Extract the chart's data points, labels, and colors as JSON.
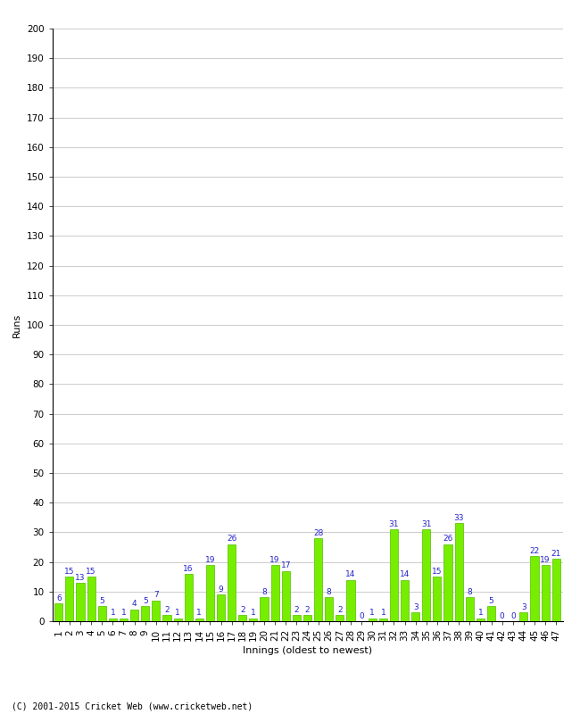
{
  "xlabel": "Innings (oldest to newest)",
  "ylabel": "Runs",
  "ylim": [
    0,
    200
  ],
  "yticks": [
    0,
    10,
    20,
    30,
    40,
    50,
    60,
    70,
    80,
    90,
    100,
    110,
    120,
    130,
    140,
    150,
    160,
    170,
    180,
    190,
    200
  ],
  "innings": [
    1,
    2,
    3,
    4,
    5,
    6,
    7,
    8,
    9,
    10,
    11,
    12,
    13,
    14,
    15,
    16,
    17,
    18,
    19,
    20,
    21,
    22,
    23,
    24,
    25,
    26,
    27,
    28,
    29,
    30,
    31,
    32,
    33,
    34,
    35,
    36,
    37,
    38,
    39,
    40,
    41,
    42,
    43,
    44,
    45,
    46,
    47
  ],
  "values": [
    6,
    15,
    13,
    15,
    5,
    1,
    1,
    4,
    5,
    7,
    2,
    1,
    16,
    1,
    19,
    9,
    26,
    2,
    1,
    8,
    19,
    17,
    2,
    2,
    28,
    8,
    2,
    14,
    0,
    1,
    1,
    31,
    14,
    3,
    31,
    15,
    26,
    33,
    8,
    1,
    5,
    0,
    0,
    3,
    22,
    19,
    21
  ],
  "bar_color": "#77ee00",
  "bar_edge_color": "#55bb00",
  "label_color": "#2222cc",
  "background_color": "#ffffff",
  "grid_color": "#cccccc",
  "footer": "(C) 2001-2015 Cricket Web (www.cricketweb.net)",
  "label_fontsize": 6.5,
  "tick_fontsize": 7.5,
  "xlabel_fontsize": 8,
  "ylabel_fontsize": 8
}
